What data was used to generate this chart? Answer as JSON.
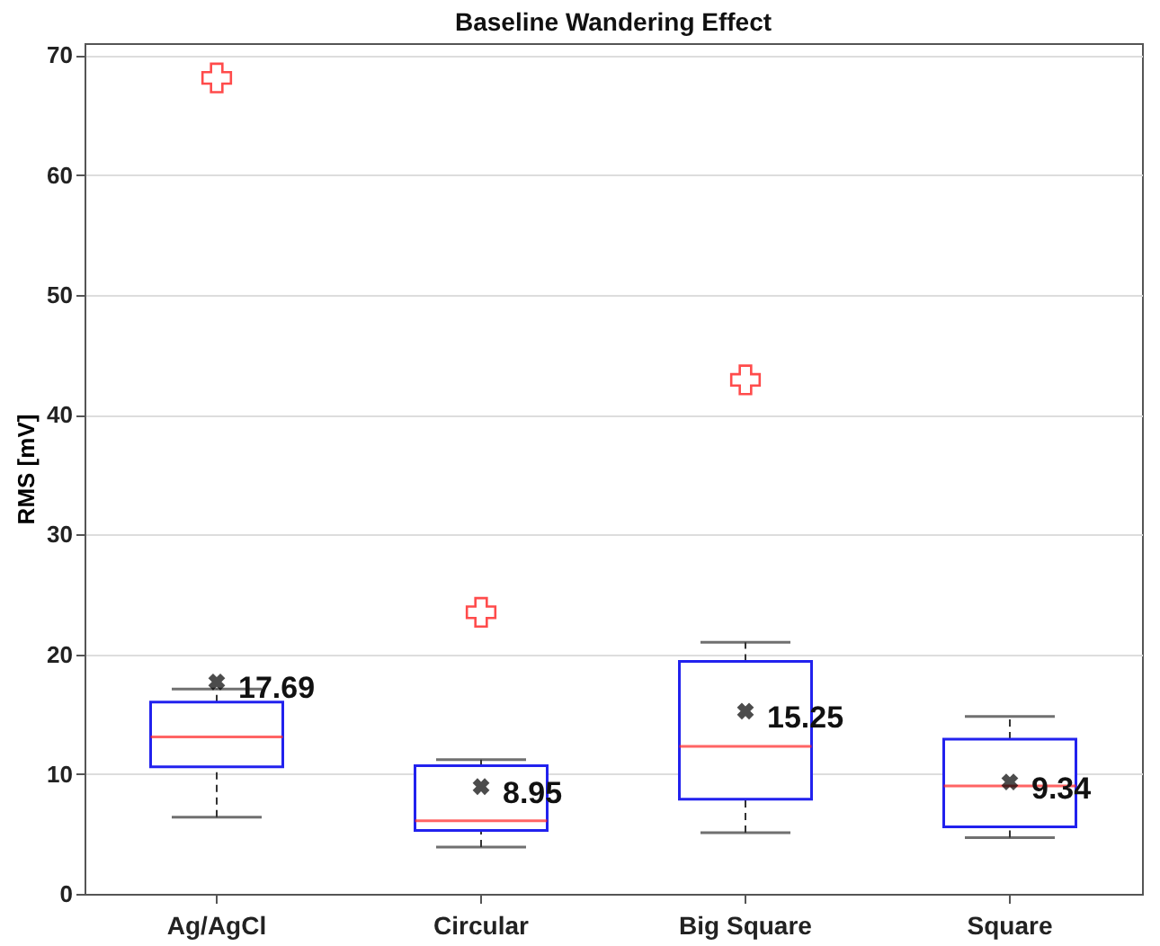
{
  "chart_data": {
    "type": "box",
    "title": "Baseline Wandering Effect",
    "ylabel": "RMS [mV]",
    "categories": [
      "Ag/AgCl",
      "Circular",
      "Big Square",
      "Square"
    ],
    "boxes": [
      {
        "low": 6.4,
        "q1": 10.6,
        "median": 13.1,
        "q3": 16.0,
        "high": 17.1,
        "mean": 17.69,
        "outliers": [
          68.1
        ]
      },
      {
        "low": 3.9,
        "q1": 5.3,
        "median": 6.1,
        "q3": 10.7,
        "high": 11.2,
        "mean": 8.95,
        "outliers": [
          23.5
        ]
      },
      {
        "low": 5.1,
        "q1": 7.9,
        "median": 12.3,
        "q3": 19.4,
        "high": 21.0,
        "mean": 15.25,
        "outliers": [
          42.9
        ]
      },
      {
        "low": 4.7,
        "q1": 5.6,
        "median": 9.0,
        "q3": 12.9,
        "high": 14.8,
        "mean": 9.34
      }
    ],
    "annotations": [
      "17.69",
      "8.95",
      "15.25",
      "9.34"
    ],
    "ylim": [
      0,
      71
    ],
    "yticks": [
      0,
      10,
      20,
      30,
      40,
      50,
      60,
      70
    ],
    "grid": "y"
  }
}
